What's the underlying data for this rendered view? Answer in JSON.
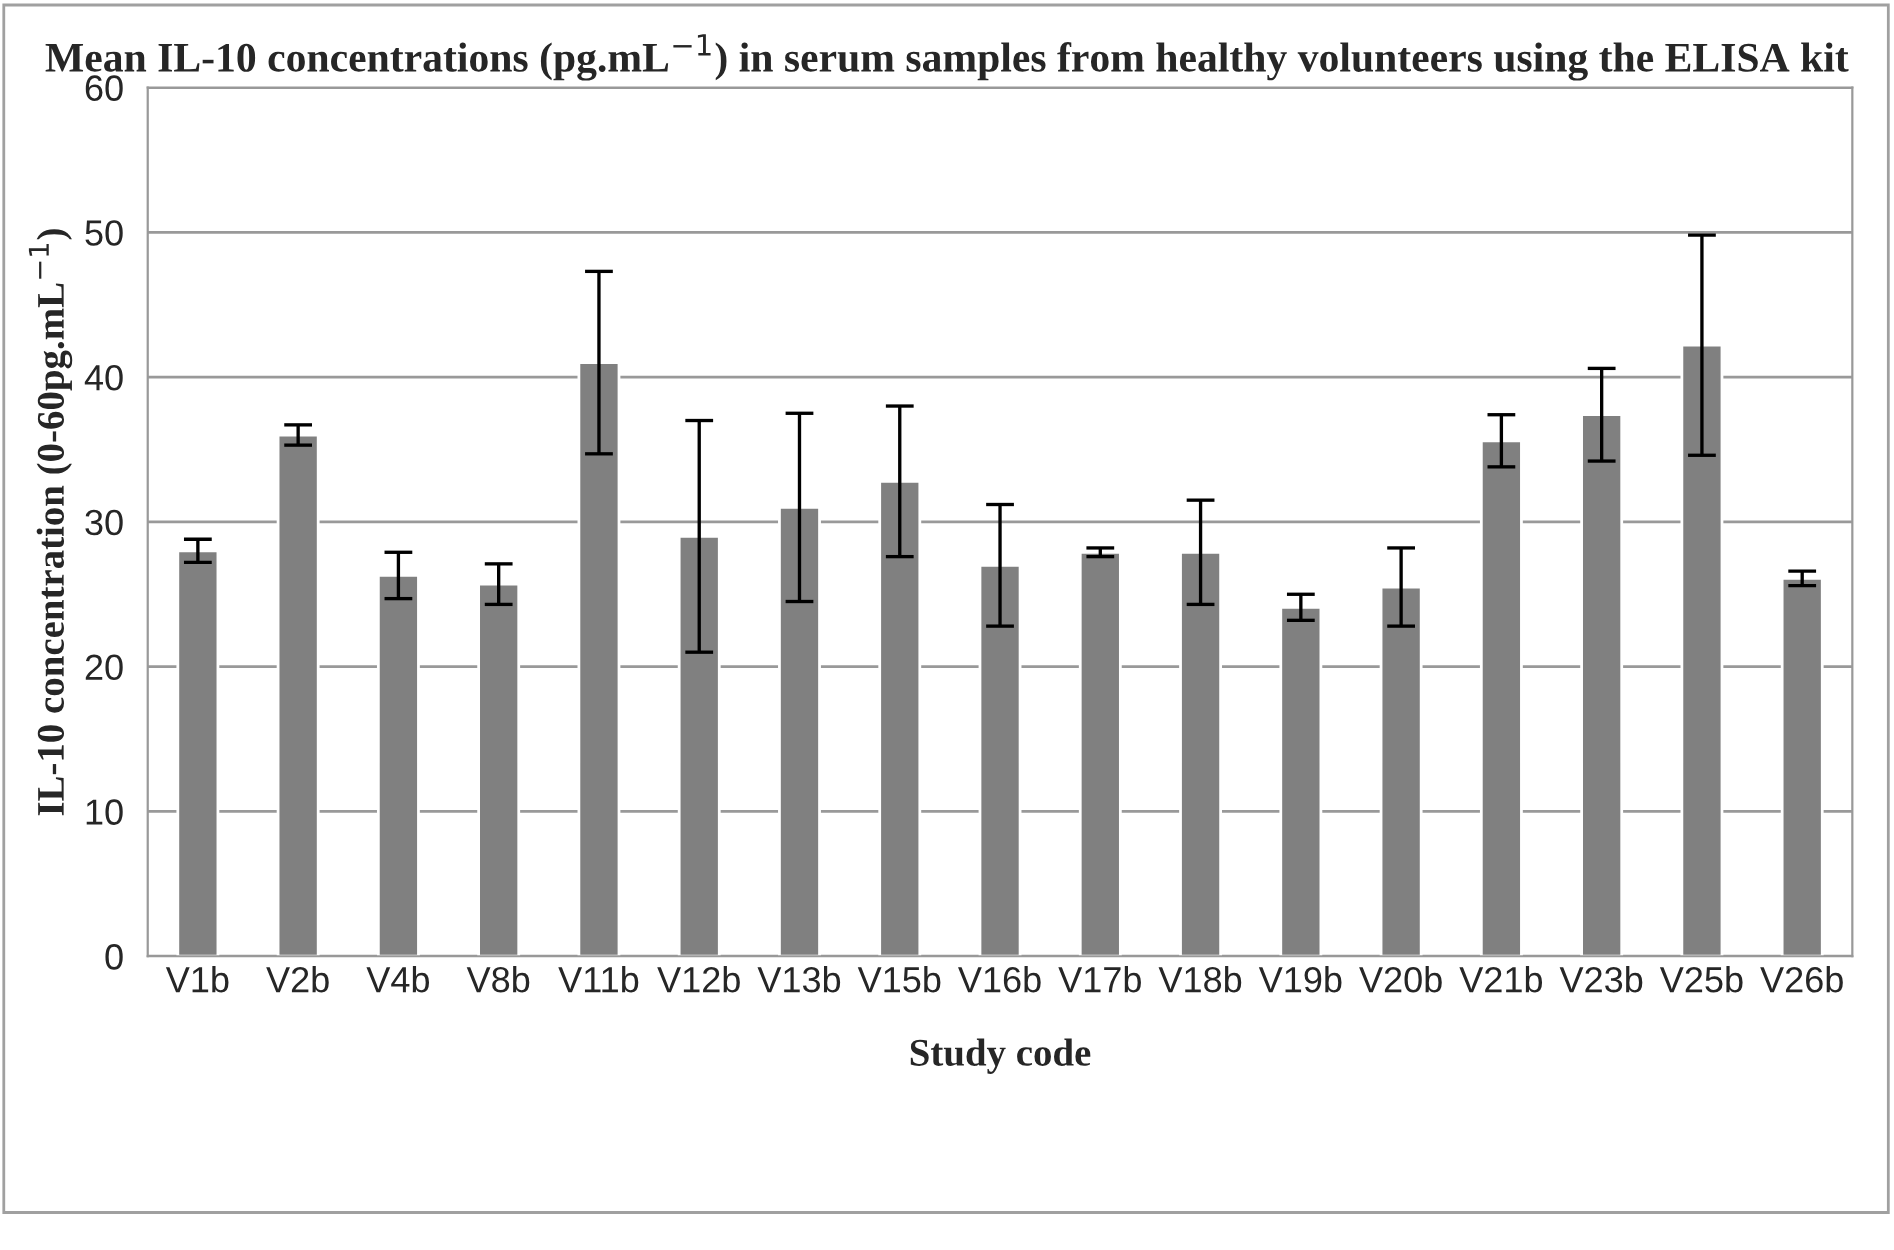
{
  "chart_data": {
    "type": "bar",
    "title": "Mean IL-10 concentrations (pg.mL$^{−1}$) in serum samples from healthy volunteers using the ELISA kit",
    "xlabel": "Study code",
    "ylabel": "IL-10 concentration (0-60pg.mL$^{−1}$)",
    "categories": [
      "V1b",
      "V2b",
      "V4b",
      "V8b",
      "V11b",
      "V12b",
      "V13b",
      "V15b",
      "V16b",
      "V17b",
      "V18b",
      "V19b",
      "V20b",
      "V21b",
      "V23b",
      "V25b",
      "V26b"
    ],
    "values": [
      28,
      36,
      26.3,
      25.7,
      41,
      29,
      31,
      32.8,
      27,
      27.9,
      27.9,
      24.1,
      25.5,
      35.6,
      37.4,
      42.2,
      26.1
    ],
    "errors": [
      0.8,
      0.7,
      1.6,
      1.4,
      6.3,
      8,
      6.5,
      5.2,
      4.2,
      0.3,
      3.6,
      0.9,
      2.7,
      1.8,
      3.2,
      7.6,
      0.5
    ],
    "color": "#808080",
    "ylim": [
      0,
      60
    ],
    "yticks": [
      0,
      10,
      20,
      30,
      40,
      50,
      60
    ],
    "grid": "y",
    "legend": false
  }
}
